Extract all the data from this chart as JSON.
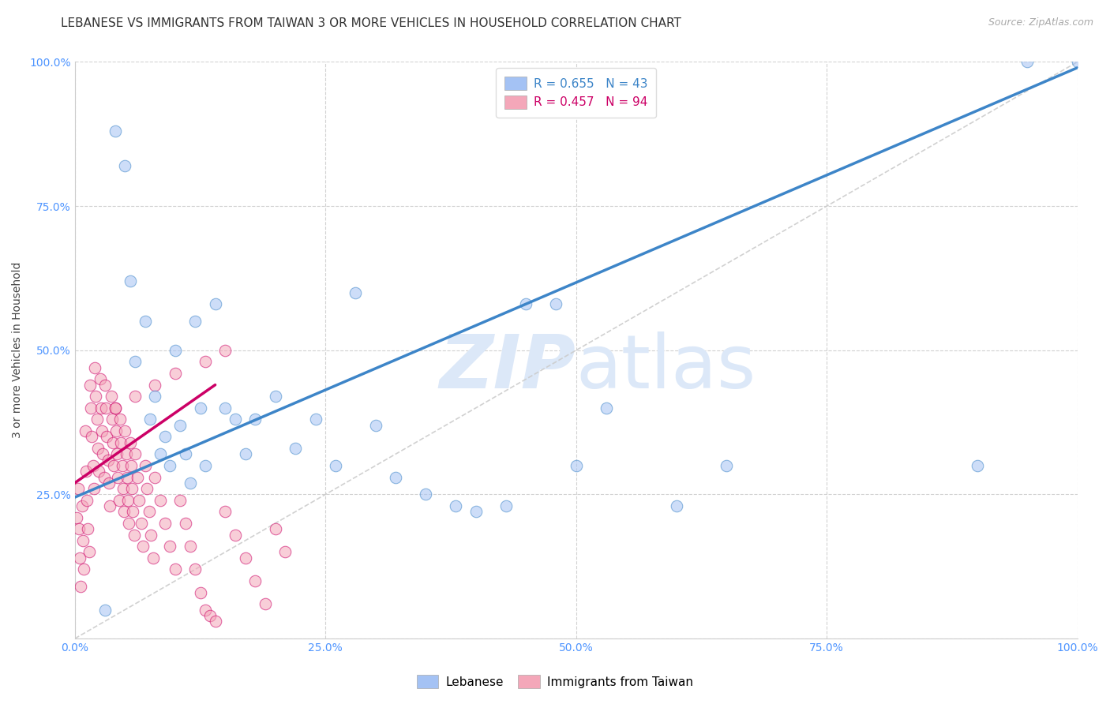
{
  "title": "LEBANESE VS IMMIGRANTS FROM TAIWAN 3 OR MORE VEHICLES IN HOUSEHOLD CORRELATION CHART",
  "source": "Source: ZipAtlas.com",
  "ylabel": "3 or more Vehicles in Household",
  "xlim": [
    0.0,
    1.0
  ],
  "ylim": [
    0.0,
    1.0
  ],
  "xticks": [
    0.0,
    0.25,
    0.5,
    0.75,
    1.0
  ],
  "yticks": [
    0.0,
    0.25,
    0.5,
    0.75,
    1.0
  ],
  "xtick_labels": [
    "0.0%",
    "25.0%",
    "50.0%",
    "75.0%",
    "100.0%"
  ],
  "ytick_labels": [
    "",
    "25.0%",
    "50.0%",
    "75.0%",
    "100.0%"
  ],
  "legend_label1": "Lebanese",
  "legend_label2": "Immigrants from Taiwan",
  "R1": 0.655,
  "N1": 43,
  "R2": 0.457,
  "N2": 94,
  "color1": "#a4c2f4",
  "color2": "#f4a7b9",
  "line_color1": "#3d85c8",
  "line_color2": "#cc0066",
  "diag_color": "#cccccc",
  "watermark_zip": "ZIP",
  "watermark_atlas": "atlas",
  "background_color": "#ffffff",
  "title_fontsize": 11,
  "axis_label_fontsize": 10,
  "tick_fontsize": 10,
  "legend_fontsize": 11,
  "source_fontsize": 9,
  "blue_line_x": [
    0.0,
    1.0
  ],
  "blue_line_y": [
    0.245,
    0.99
  ],
  "pink_line_x": [
    0.0,
    0.14
  ],
  "pink_line_y": [
    0.27,
    0.44
  ],
  "diag_line_x": [
    0.0,
    1.0
  ],
  "diag_line_y": [
    0.0,
    1.0
  ],
  "scatter1_x": [
    0.03,
    0.04,
    0.05,
    0.055,
    0.06,
    0.07,
    0.075,
    0.08,
    0.085,
    0.09,
    0.095,
    0.1,
    0.105,
    0.11,
    0.115,
    0.12,
    0.125,
    0.13,
    0.14,
    0.15,
    0.16,
    0.17,
    0.18,
    0.2,
    0.22,
    0.24,
    0.26,
    0.28,
    0.3,
    0.32,
    0.35,
    0.38,
    0.4,
    0.43,
    0.45,
    0.48,
    0.5,
    0.53,
    0.6,
    0.65,
    0.9,
    0.95,
    1.0
  ],
  "scatter1_y": [
    0.05,
    0.88,
    0.82,
    0.62,
    0.48,
    0.55,
    0.38,
    0.42,
    0.32,
    0.35,
    0.3,
    0.5,
    0.37,
    0.32,
    0.27,
    0.55,
    0.4,
    0.3,
    0.58,
    0.4,
    0.38,
    0.32,
    0.38,
    0.42,
    0.33,
    0.38,
    0.3,
    0.6,
    0.37,
    0.28,
    0.25,
    0.23,
    0.22,
    0.23,
    0.58,
    0.58,
    0.3,
    0.4,
    0.23,
    0.3,
    0.3,
    1.0,
    1.0
  ],
  "scatter2_x": [
    0.002,
    0.003,
    0.004,
    0.005,
    0.006,
    0.007,
    0.008,
    0.009,
    0.01,
    0.011,
    0.012,
    0.013,
    0.014,
    0.015,
    0.016,
    0.017,
    0.018,
    0.019,
    0.02,
    0.021,
    0.022,
    0.023,
    0.024,
    0.025,
    0.026,
    0.027,
    0.028,
    0.029,
    0.03,
    0.031,
    0.032,
    0.033,
    0.034,
    0.035,
    0.036,
    0.037,
    0.038,
    0.039,
    0.04,
    0.041,
    0.042,
    0.043,
    0.044,
    0.045,
    0.046,
    0.047,
    0.048,
    0.049,
    0.05,
    0.051,
    0.052,
    0.053,
    0.054,
    0.055,
    0.056,
    0.057,
    0.058,
    0.059,
    0.06,
    0.062,
    0.064,
    0.066,
    0.068,
    0.07,
    0.072,
    0.074,
    0.076,
    0.078,
    0.08,
    0.085,
    0.09,
    0.095,
    0.1,
    0.105,
    0.11,
    0.115,
    0.12,
    0.125,
    0.13,
    0.135,
    0.14,
    0.15,
    0.16,
    0.17,
    0.18,
    0.19,
    0.2,
    0.21,
    0.15,
    0.13,
    0.1,
    0.08,
    0.06,
    0.04
  ],
  "scatter2_y": [
    0.21,
    0.26,
    0.19,
    0.14,
    0.09,
    0.23,
    0.17,
    0.12,
    0.36,
    0.29,
    0.24,
    0.19,
    0.15,
    0.44,
    0.4,
    0.35,
    0.3,
    0.26,
    0.47,
    0.42,
    0.38,
    0.33,
    0.29,
    0.45,
    0.4,
    0.36,
    0.32,
    0.28,
    0.44,
    0.4,
    0.35,
    0.31,
    0.27,
    0.23,
    0.42,
    0.38,
    0.34,
    0.3,
    0.4,
    0.36,
    0.32,
    0.28,
    0.24,
    0.38,
    0.34,
    0.3,
    0.26,
    0.22,
    0.36,
    0.32,
    0.28,
    0.24,
    0.2,
    0.34,
    0.3,
    0.26,
    0.22,
    0.18,
    0.32,
    0.28,
    0.24,
    0.2,
    0.16,
    0.3,
    0.26,
    0.22,
    0.18,
    0.14,
    0.28,
    0.24,
    0.2,
    0.16,
    0.12,
    0.24,
    0.2,
    0.16,
    0.12,
    0.08,
    0.05,
    0.04,
    0.03,
    0.22,
    0.18,
    0.14,
    0.1,
    0.06,
    0.19,
    0.15,
    0.5,
    0.48,
    0.46,
    0.44,
    0.42,
    0.4
  ]
}
